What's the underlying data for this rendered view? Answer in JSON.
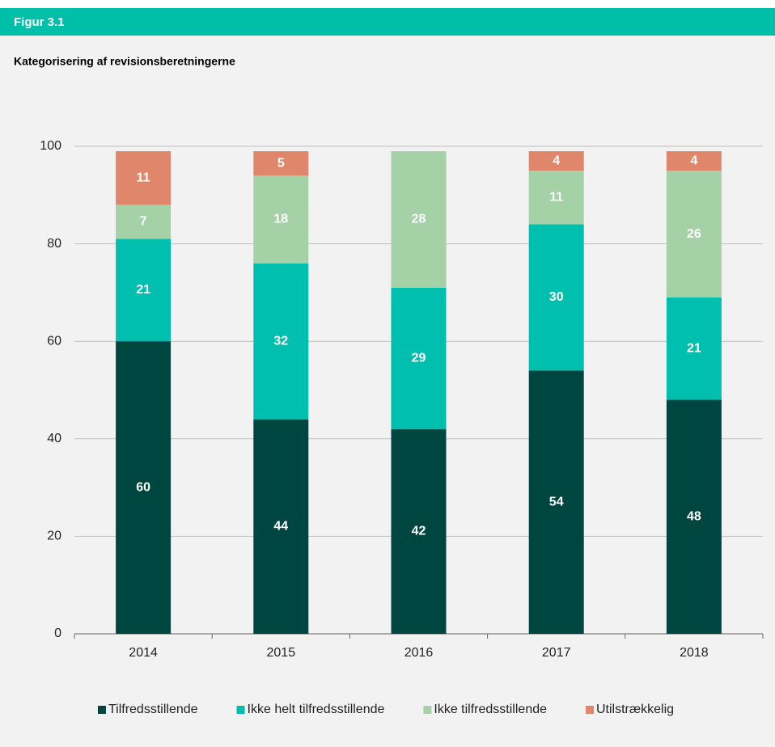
{
  "chart_data": {
    "type": "stacked_bar",
    "figure_label": "Figur 3.1",
    "title": "Kategorisering af revisionsberetningerne",
    "categories": [
      "2014",
      "2015",
      "2016",
      "2017",
      "2018"
    ],
    "series": [
      {
        "name": "Tilfredsstillende",
        "color": "#004640",
        "values": [
          60,
          44,
          42,
          54,
          48
        ]
      },
      {
        "name": "Ikke helt tilfredsstillende",
        "color": "#00bfae",
        "values": [
          21,
          32,
          29,
          30,
          21
        ]
      },
      {
        "name": "Ikke tilfredsstillende",
        "color": "#a4d2a6",
        "values": [
          7,
          18,
          28,
          11,
          26
        ]
      },
      {
        "name": "Utilstrækkelig",
        "color": "#e0876b",
        "values": [
          11,
          5,
          null,
          4,
          4
        ]
      }
    ],
    "ylim": [
      0,
      100
    ],
    "yticks": [
      0,
      20,
      40,
      60,
      80,
      100
    ],
    "grid": true,
    "legend": "bottom"
  }
}
